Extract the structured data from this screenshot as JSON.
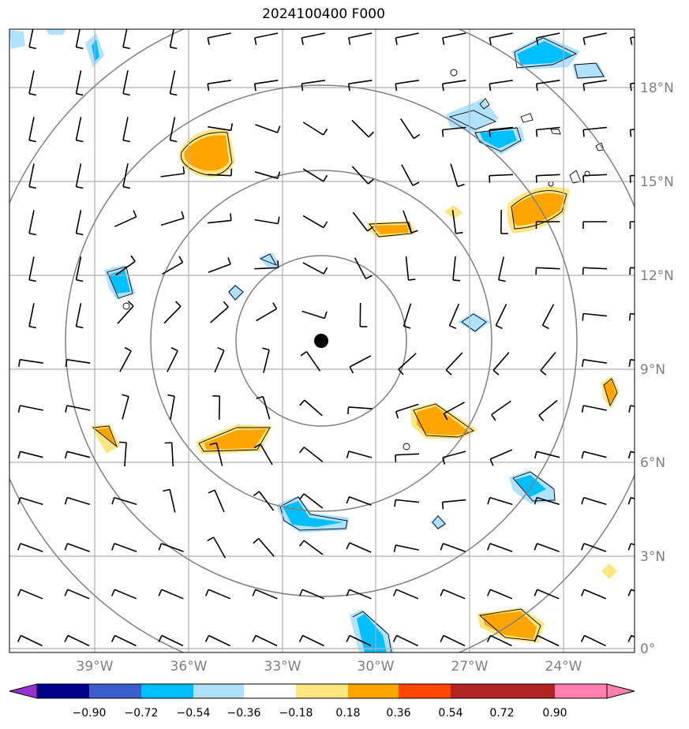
{
  "title": "2024100400 F000",
  "lon_labels": [
    "39°W",
    "36°W",
    "33°W",
    "30°W",
    "27°W",
    "24°W"
  ],
  "lat_labels": [
    "18°N",
    "15°N",
    "12°N",
    "9°N",
    "6°N",
    "3°N",
    "0°"
  ],
  "colorbar": {
    "colors": [
      "#9932cc",
      "#00008b",
      "#3a5fcd",
      "#00bfff",
      "#b0e2ff",
      "#ffffff",
      "#ffe680",
      "#ffa500",
      "#ff4500",
      "#b22222",
      "#ff80b0"
    ],
    "tick_labels": [
      "−0.90",
      "−0.72",
      "−0.54",
      "−0.36",
      "−0.18",
      "0.18",
      "0.36",
      "0.54",
      "0.72",
      "0.90"
    ]
  },
  "center_marker": "storm-center-dot",
  "range_rings": 4
}
